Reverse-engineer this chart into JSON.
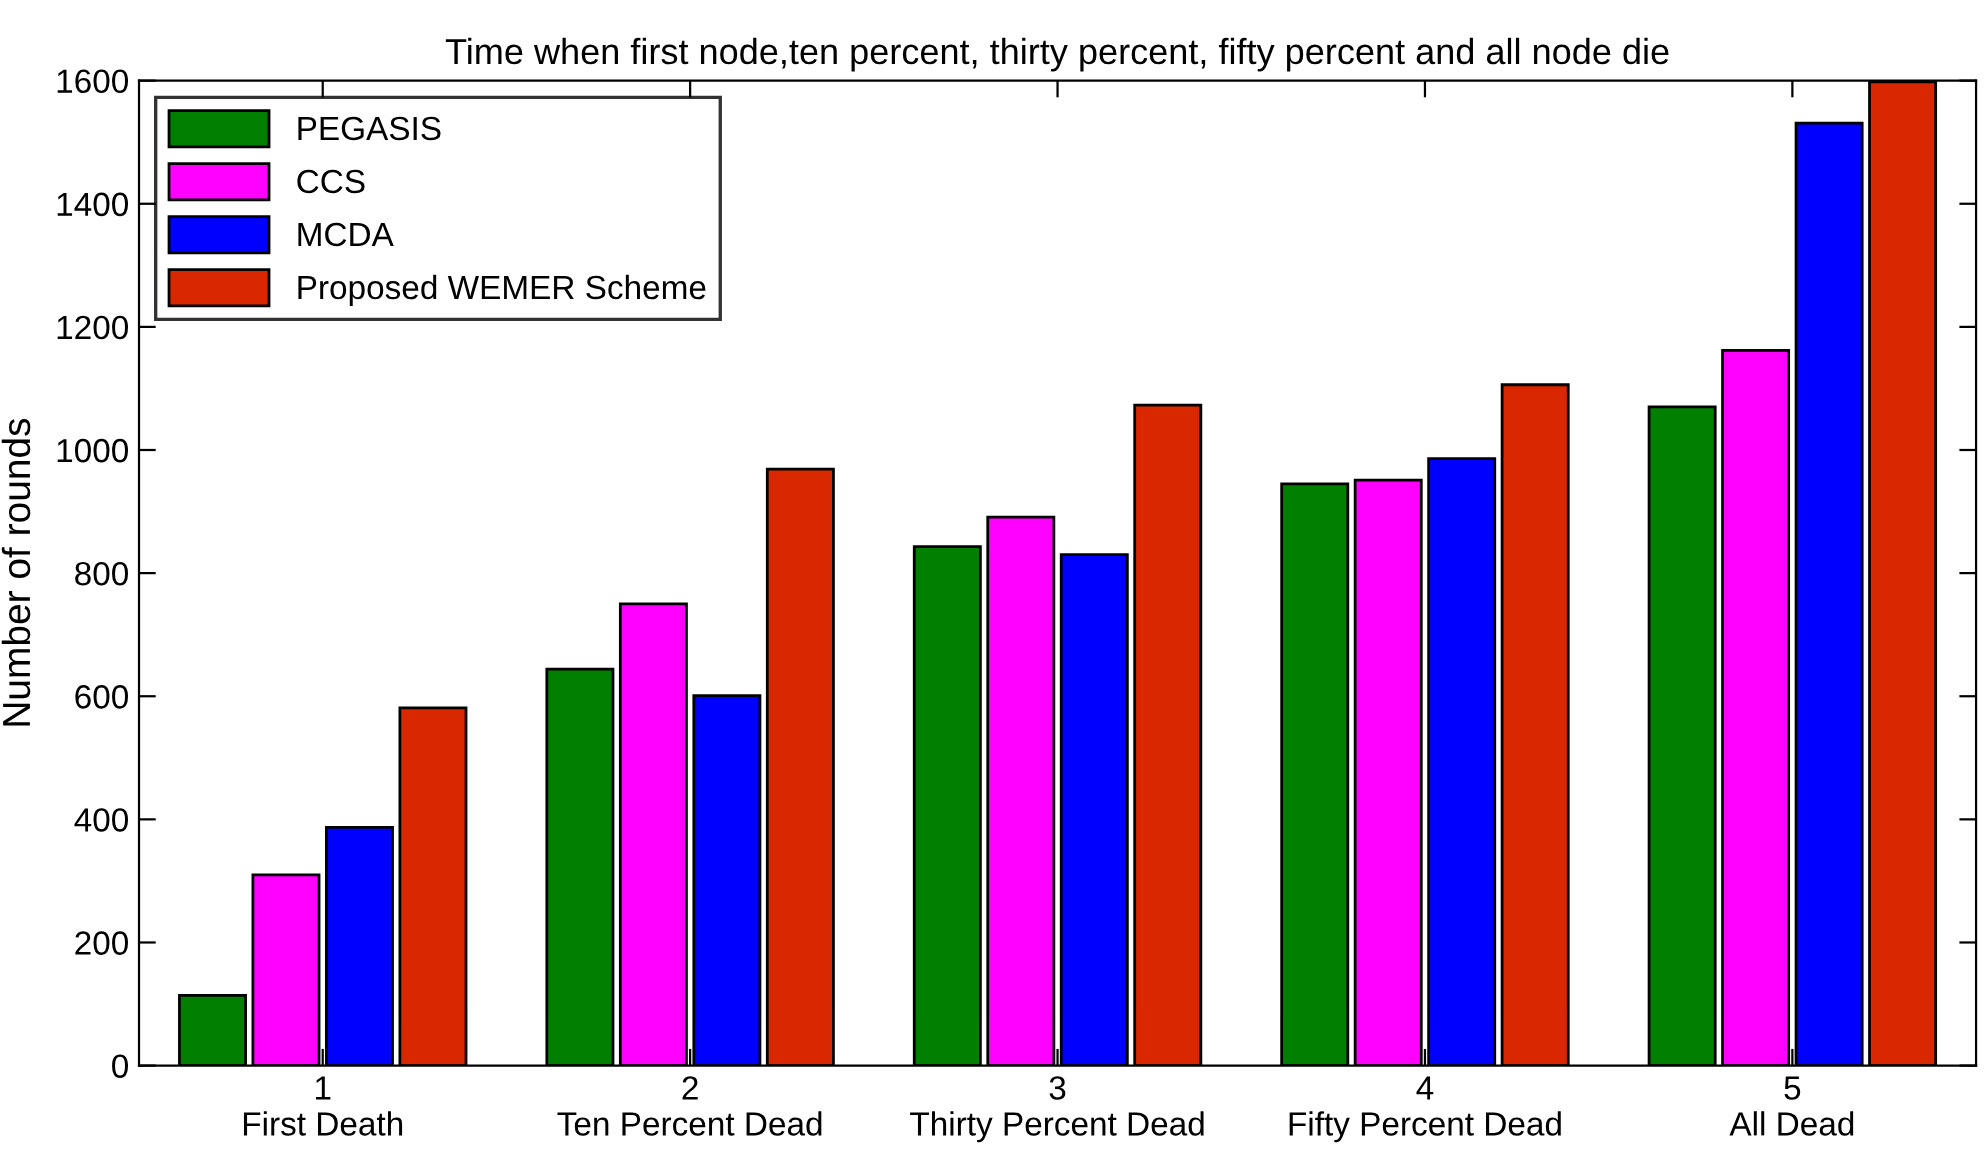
{
  "chart_data": {
    "type": "bar",
    "title": "Time when first node,ten percent, thirty percent, fifty percent and all node die",
    "ylabel": "Number of rounds",
    "categories": [
      "1\nFirst Death",
      "2\nTen Percent Dead",
      "3\nThirty Percent Dead",
      "4\nFifty Percent Dead",
      "5\nAll Dead"
    ],
    "series": [
      {
        "name": "PEGASIS",
        "color": "#007f00",
        "values": [
          114,
          644,
          843,
          945,
          1070
        ]
      },
      {
        "name": "CCS",
        "color": "#ff00ff",
        "values": [
          310,
          750,
          891,
          951,
          1162
        ]
      },
      {
        "name": "MCDA",
        "color": "#0000ff",
        "values": [
          387,
          601,
          830,
          986,
          1531
        ]
      },
      {
        "name": "Proposed WEMER Scheme",
        "color": "#d92800",
        "values": [
          581,
          969,
          1073,
          1106,
          1598
        ]
      }
    ],
    "ylim": [
      0,
      1600
    ],
    "yticks": [
      0,
      200,
      400,
      600,
      800,
      1000,
      1200,
      1400,
      1600
    ],
    "legend": "top left"
  }
}
